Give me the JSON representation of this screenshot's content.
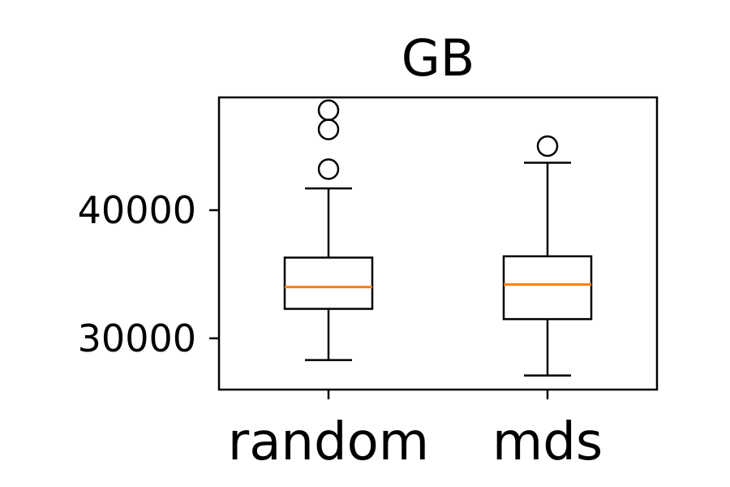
{
  "chart_data": {
    "type": "box",
    "title": "GB",
    "xlabel": "",
    "ylabel": "",
    "ylim": [
      26000,
      48800
    ],
    "yticks": [
      30000,
      40000
    ],
    "ytick_labels": [
      "30000",
      "40000"
    ],
    "categories": [
      "random",
      "mds"
    ],
    "grid": false,
    "boxes": [
      {
        "label": "random",
        "whisker_low": 28300,
        "q1": 32300,
        "median": 34000,
        "q3": 36300,
        "whisker_high": 41700,
        "outliers": [
          43200,
          46300,
          47800
        ]
      },
      {
        "label": "mds",
        "whisker_low": 27100,
        "q1": 31500,
        "median": 34200,
        "q3": 36400,
        "whisker_high": 43700,
        "outliers": [
          45000
        ]
      }
    ],
    "colors": {
      "box": "#000000",
      "median": "#ff7f0e",
      "outlier": "#000000"
    }
  }
}
